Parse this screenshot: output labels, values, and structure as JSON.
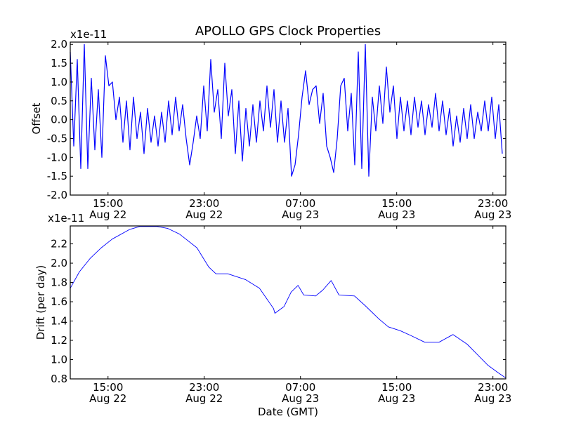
{
  "title": "APOLLO GPS Clock Properties",
  "chart_data": [
    {
      "type": "line",
      "name": "offset",
      "title": "APOLLO GPS Clock Properties",
      "ylabel": "Offset",
      "xlabel": "",
      "scale_label": "x1e-11",
      "xlim": [
        11.86,
        48.07
      ],
      "x_units": "hours since Aug 22 00:00 GMT",
      "ylim": [
        -2.0,
        2.06
      ],
      "yticks": [
        "-2.0",
        "-1.5",
        "-1.0",
        "-0.5",
        "0.0",
        "0.5",
        "1.0",
        "1.5",
        "2.0"
      ],
      "xticks": [
        {
          "value": 15,
          "time": "15:00",
          "date": "Aug 22"
        },
        {
          "value": 23,
          "time": "23:00",
          "date": "Aug 22"
        },
        {
          "value": 31,
          "time": "07:00",
          "date": "Aug 23"
        },
        {
          "value": 39,
          "time": "15:00",
          "date": "Aug 23"
        },
        {
          "value": 47,
          "time": "23:00",
          "date": "Aug 23"
        }
      ],
      "color": "#0000ff",
      "series": [
        {
          "name": "Offset",
          "x_start": 11.86,
          "x_step": 0.292,
          "values": [
            1.8,
            -0.7,
            1.6,
            -1.3,
            2.0,
            -1.3,
            1.1,
            -0.8,
            0.8,
            -1.0,
            1.7,
            0.9,
            1.0,
            0.0,
            0.6,
            -0.6,
            0.5,
            -0.8,
            0.6,
            -0.5,
            0.2,
            -0.9,
            0.3,
            -0.6,
            0.1,
            -0.7,
            0.2,
            -0.6,
            0.5,
            -0.4,
            0.6,
            -0.3,
            0.4,
            -0.5,
            -1.2,
            -0.6,
            0.1,
            -0.5,
            0.9,
            -0.3,
            1.6,
            0.2,
            0.8,
            -0.5,
            1.5,
            0.1,
            0.8,
            -0.9,
            0.5,
            -1.1,
            0.3,
            -0.7,
            0.4,
            -0.6,
            0.5,
            -0.3,
            0.9,
            -0.2,
            0.8,
            -0.6,
            0.5,
            -0.6,
            0.3,
            -1.5,
            -1.2,
            -0.4,
            0.6,
            1.3,
            0.4,
            0.8,
            0.9,
            -0.1,
            0.7,
            -0.7,
            -1.0,
            -1.4,
            -0.5,
            0.9,
            1.1,
            -0.3,
            0.7,
            -1.2,
            1.8,
            -1.3,
            2.0,
            -1.5,
            0.6,
            -0.3,
            0.9,
            -0.1,
            1.4,
            0.2,
            0.9,
            -0.5,
            0.6,
            -0.3,
            0.5,
            -0.4,
            0.6,
            -0.2,
            0.5,
            -0.4,
            0.4,
            -0.2,
            0.7,
            -0.3,
            0.5,
            -0.4,
            0.3,
            -0.7,
            0.1,
            -0.6,
            0.3,
            -0.5,
            0.4,
            -0.5,
            0.2,
            -0.3,
            0.5,
            -0.3,
            0.6,
            -0.5,
            0.4,
            -0.9
          ]
        }
      ]
    },
    {
      "type": "line",
      "name": "drift",
      "ylabel": "Drift (per day)",
      "xlabel": "Date (GMT)",
      "scale_label": "x1e-11",
      "xlim": [
        11.86,
        48.07
      ],
      "x_units": "hours since Aug 22 00:00 GMT",
      "ylim": [
        0.8,
        2.386
      ],
      "yticks": [
        "0.8",
        "1.0",
        "1.2",
        "1.4",
        "1.6",
        "1.8",
        "2.0",
        "2.2"
      ],
      "xticks": [
        {
          "value": 15,
          "time": "15:00",
          "date": "Aug 22"
        },
        {
          "value": 23,
          "time": "23:00",
          "date": "Aug 22"
        },
        {
          "value": 31,
          "time": "07:00",
          "date": "Aug 23"
        },
        {
          "value": 39,
          "time": "15:00",
          "date": "Aug 23"
        },
        {
          "value": 47,
          "time": "23:00",
          "date": "Aug 23"
        }
      ],
      "color": "#0000ff",
      "series": [
        {
          "name": "Drift",
          "x": [
            11.86,
            12.62,
            13.52,
            14.44,
            15.35,
            16.81,
            17.63,
            19.09,
            19.97,
            20.96,
            22.39,
            23.38,
            23.97,
            24.96,
            26.42,
            27.59,
            28.76,
            28.87,
            29.63,
            30.22,
            30.8,
            31.27,
            32.26,
            32.85,
            33.55,
            34.2,
            35.49,
            36.37,
            37.54,
            38.3,
            39.29,
            40.17,
            41.34,
            42.51,
            43.68,
            44.85,
            45.72,
            46.6,
            47.48,
            48.07
          ],
          "y": [
            1.74,
            1.91,
            2.05,
            2.16,
            2.25,
            2.35,
            2.38,
            2.38,
            2.36,
            2.3,
            2.16,
            1.96,
            1.89,
            1.89,
            1.83,
            1.74,
            1.53,
            1.48,
            1.55,
            1.7,
            1.77,
            1.67,
            1.66,
            1.72,
            1.82,
            1.67,
            1.66,
            1.56,
            1.42,
            1.34,
            1.3,
            1.25,
            1.18,
            1.18,
            1.26,
            1.16,
            1.05,
            0.94,
            0.86,
            0.81
          ]
        }
      ]
    }
  ]
}
